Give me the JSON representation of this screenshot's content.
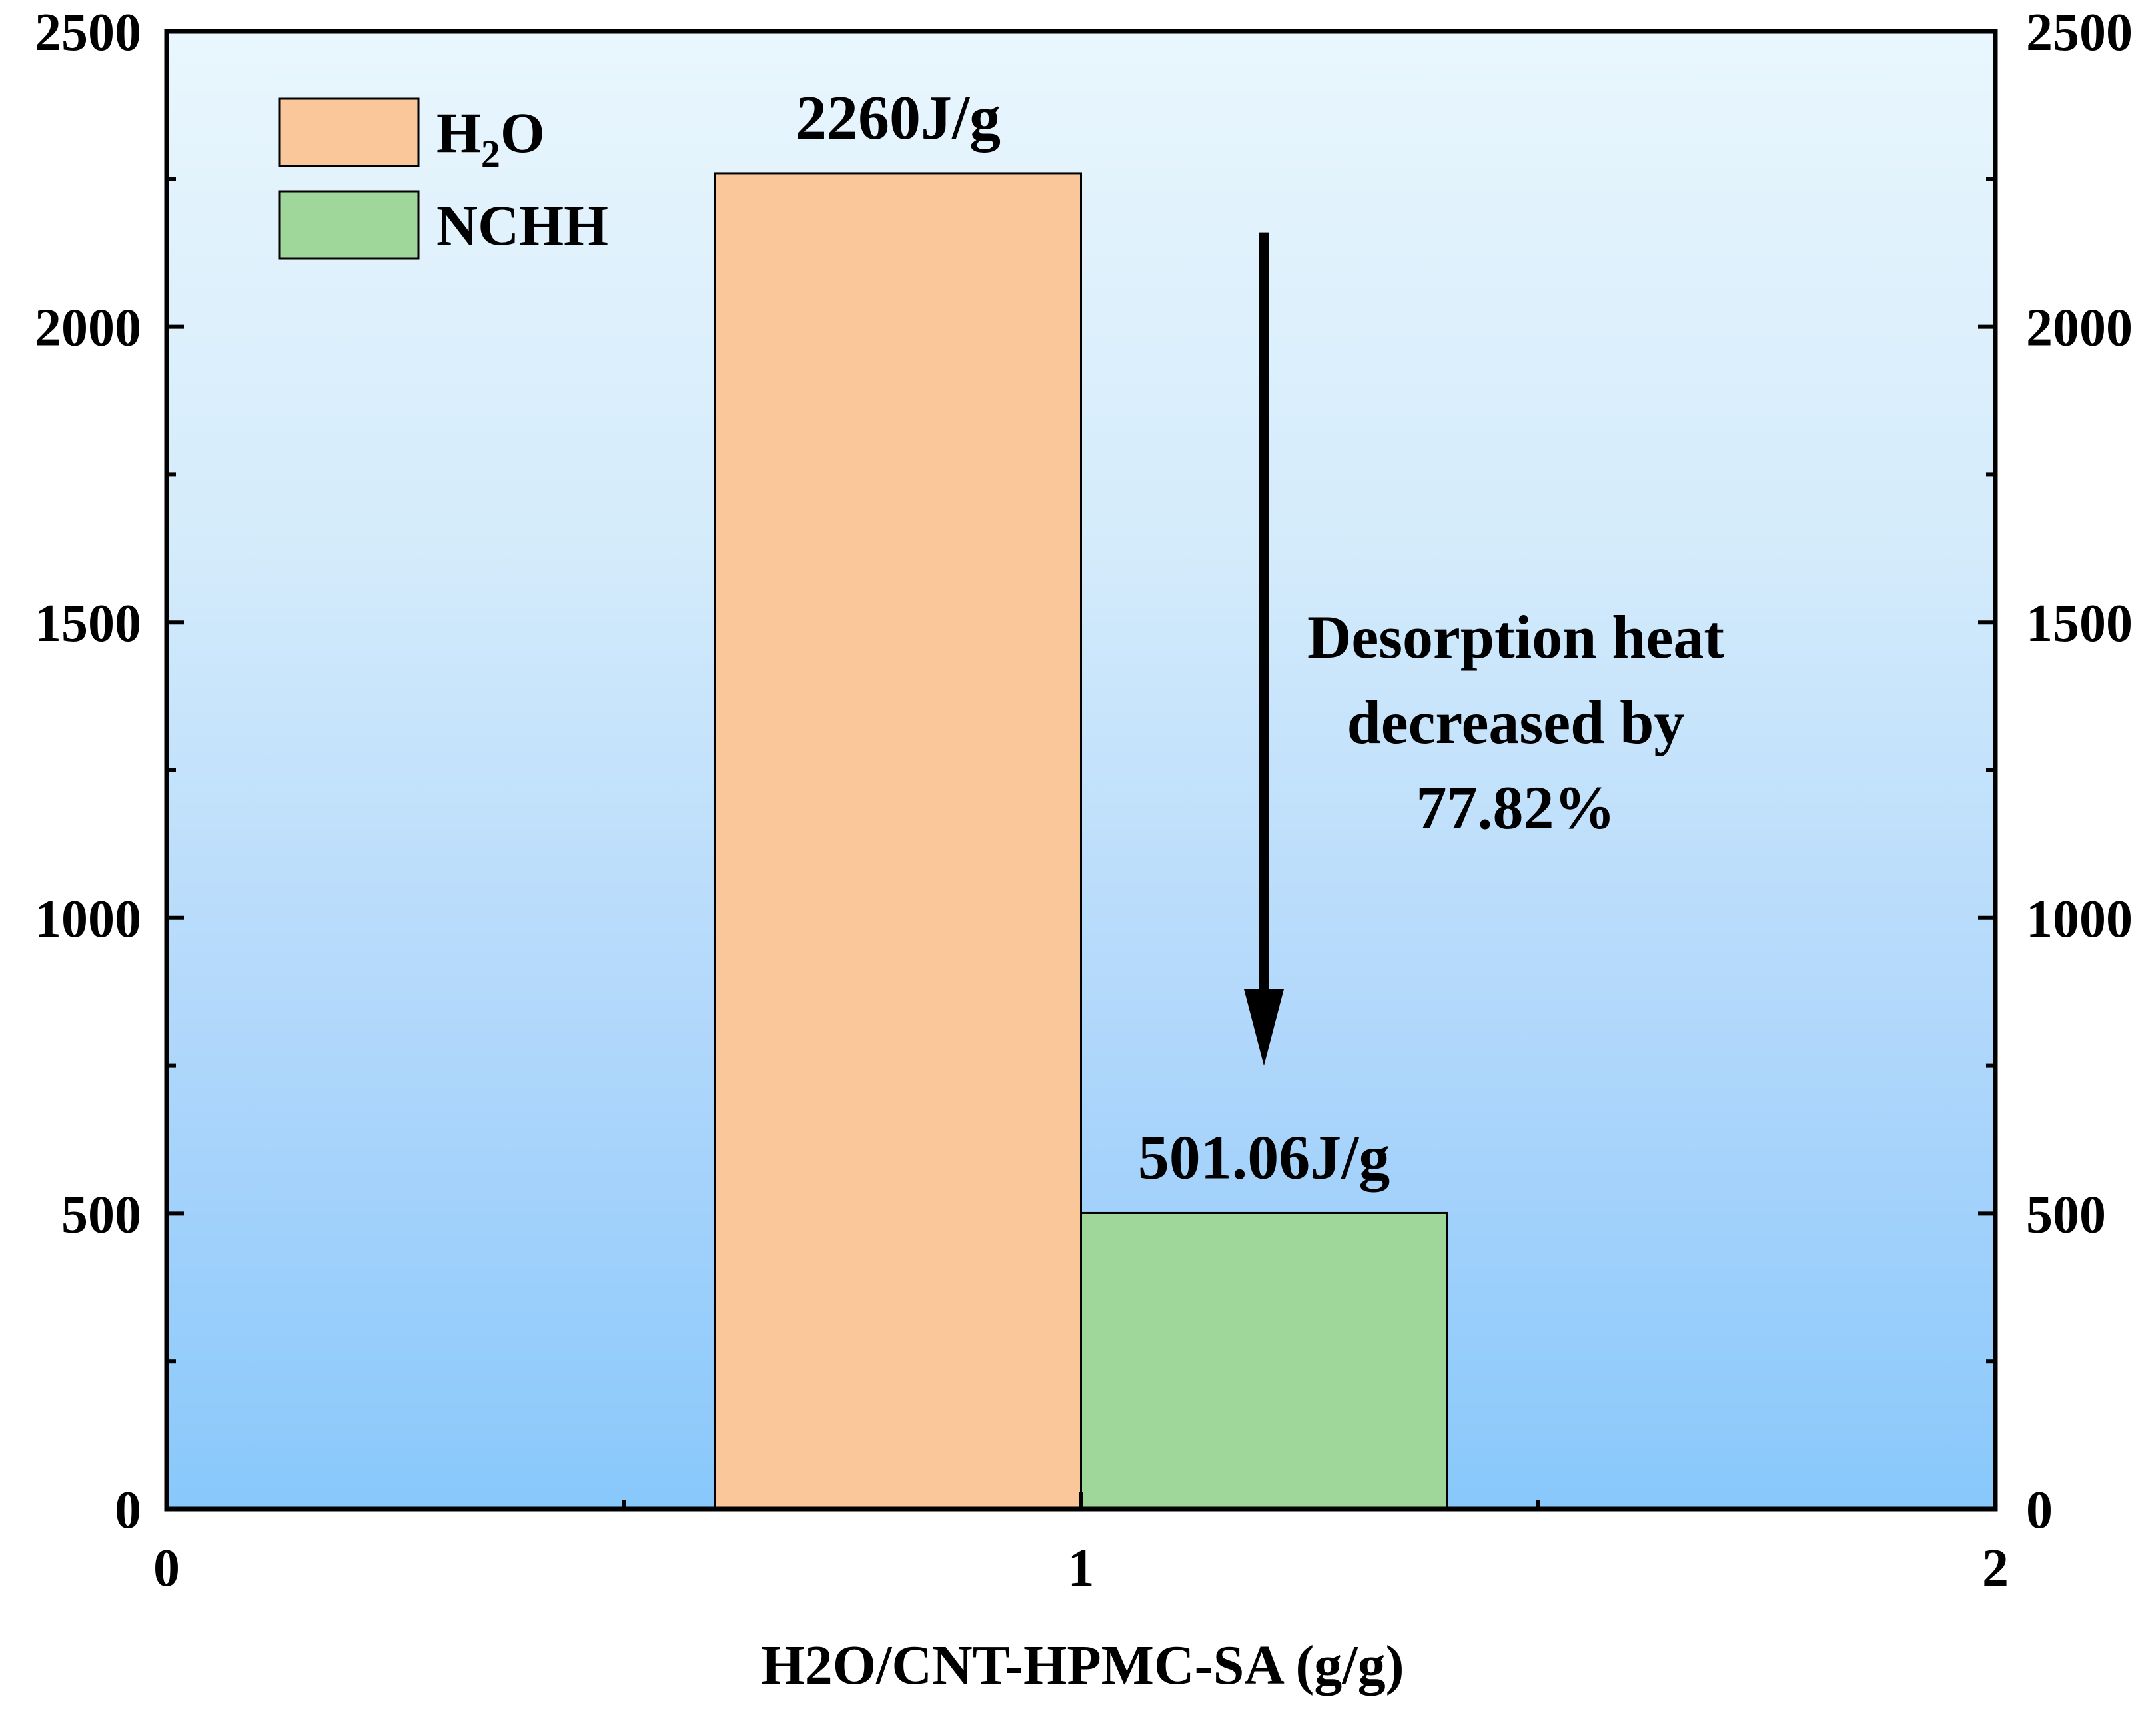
{
  "chart_data": {
    "type": "bar",
    "xlabel": "H2O/CNT-HPMC-SA (g/g)",
    "ylabel": "",
    "xlim": [
      0,
      2
    ],
    "ylim": [
      0,
      2500
    ],
    "x_ticks": [
      "0",
      "1",
      "2"
    ],
    "y_ticks": [
      "0",
      "500",
      "1000",
      "1500",
      "2000",
      "2500"
    ],
    "y_ticks_right": [
      "0",
      "500",
      "1000",
      "1500",
      "2000",
      "2500"
    ],
    "grid": false,
    "legend_position": "top-left",
    "background": "vertical gradient, light blue to blue",
    "series": [
      {
        "name": "H2O",
        "legend_label": {
          "main": "H",
          "sub": "2",
          "tail": "O"
        },
        "x": 0.8,
        "value": 2260,
        "color": "#f9c79a",
        "data_label": "2260J/g"
      },
      {
        "name": "NCHH",
        "legend_label": {
          "main": "NCHH",
          "sub": "",
          "tail": ""
        },
        "x": 1.2,
        "value": 501.06,
        "color": "#9fd79a",
        "data_label": "501.06J/g"
      }
    ],
    "bar_width": 0.4,
    "annotation": {
      "lines": [
        "Desorption heat",
        "decreased by",
        "77.82%"
      ],
      "arrow": {
        "x": 1.2,
        "from": 2160,
        "to": 750
      }
    }
  }
}
